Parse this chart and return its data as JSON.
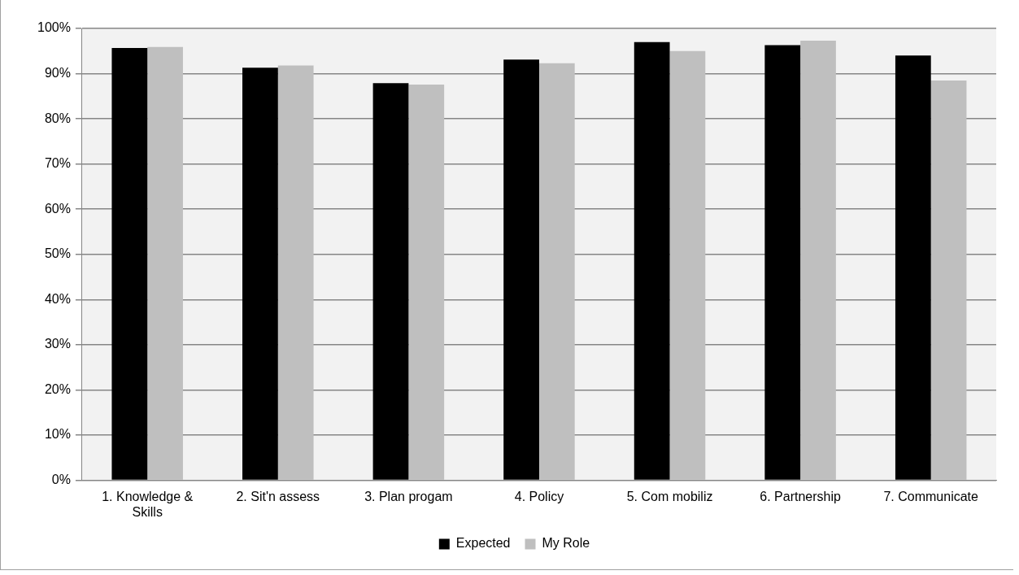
{
  "chart_data": {
    "type": "bar",
    "categories": [
      "1. Knowledge & Skills",
      "2. Sit'n assess",
      "3. Plan progam",
      "4. Policy",
      "5. Com mobiliz",
      "6. Partnership",
      "7. Communicate"
    ],
    "series": [
      {
        "name": "Expected",
        "color": "#000000",
        "values": [
          95.7,
          91.3,
          87.9,
          93.1,
          97.0,
          96.3,
          94.0
        ]
      },
      {
        "name": "My Role",
        "color": "#bfbfbf",
        "values": [
          95.9,
          91.8,
          87.6,
          92.3,
          95.0,
          97.3,
          88.5
        ]
      }
    ],
    "ylim": [
      0,
      100
    ],
    "yticks": [
      {
        "value": 0,
        "label": "0%"
      },
      {
        "value": 10,
        "label": "10%"
      },
      {
        "value": 20,
        "label": "20%"
      },
      {
        "value": 30,
        "label": "30%"
      },
      {
        "value": 40,
        "label": "40%"
      },
      {
        "value": 50,
        "label": "50%"
      },
      {
        "value": 60,
        "label": "60%"
      },
      {
        "value": 70,
        "label": "70%"
      },
      {
        "value": 80,
        "label": "80%"
      },
      {
        "value": 90,
        "label": "90%"
      },
      {
        "value": 100,
        "label": "100%"
      }
    ],
    "grid": "y",
    "legend": "bottom"
  }
}
